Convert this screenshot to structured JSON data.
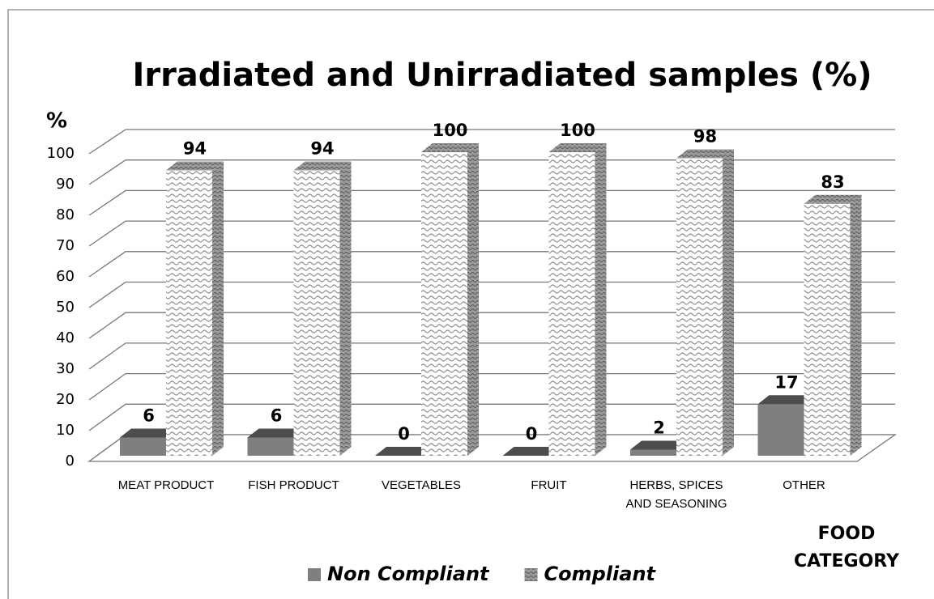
{
  "chart_data": {
    "type": "bar3d",
    "title": "Irradiated and Unirradiated samples (%)",
    "y_label": "%",
    "x_label": "FOOD CATEGORY",
    "categories": [
      "MEAT PRODUCT",
      "FISH PRODUCT",
      "VEGETABLES",
      "FRUIT",
      "HERBS, SPICES AND SEASONING",
      "OTHER"
    ],
    "series": [
      {
        "name": "Non Compliant",
        "color": "#7f7f7f",
        "pattern": "solid",
        "values": [
          6,
          6,
          0,
          0,
          2,
          17
        ]
      },
      {
        "name": "Compliant",
        "color": "#8c8c8c",
        "pattern": "wave",
        "values": [
          94,
          94,
          100,
          100,
          98,
          83
        ]
      }
    ],
    "ylim": [
      0,
      100
    ],
    "yticks": [
      0,
      10,
      20,
      30,
      40,
      50,
      60,
      70,
      80,
      90,
      100
    ],
    "grid": true,
    "legend": "bottom"
  }
}
